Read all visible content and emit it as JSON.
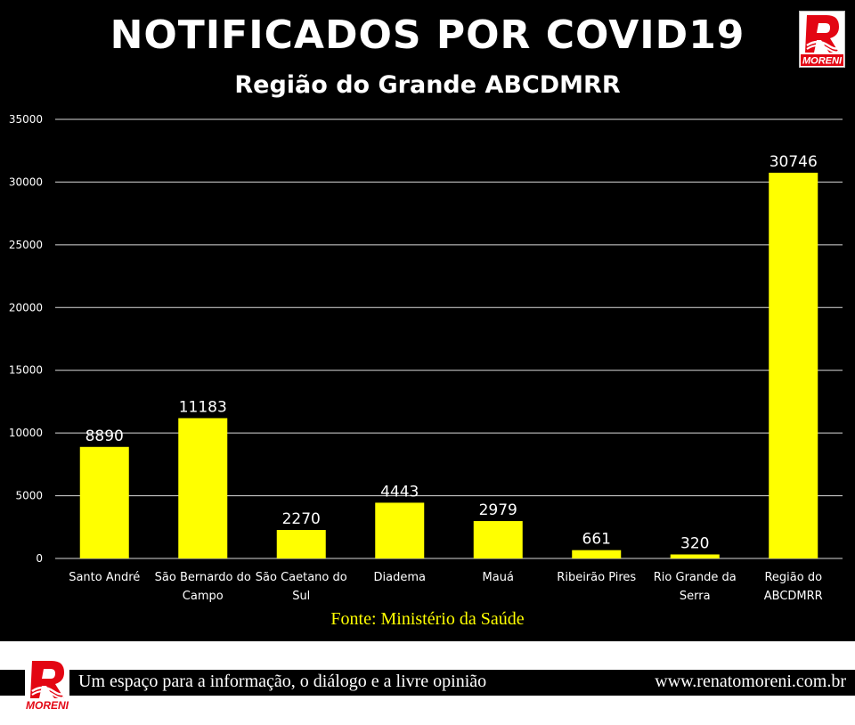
{
  "header": {
    "title": "NOTIFICADOS POR COVID19",
    "subtitle": "Região do Grande ABCDMRR",
    "logo_text": "MORENI"
  },
  "colors": {
    "background": "#000000",
    "bar": "#ffff00",
    "text": "#ffffff",
    "source": "#ffff00",
    "logo_red": "#e30613"
  },
  "chart_data": {
    "type": "bar",
    "title": "NOTIFICADOS POR COVID19",
    "subtitle": "Região do Grande ABCDMRR",
    "categories": [
      "Santo André",
      "São Bernardo do Campo",
      "São Caetano do Sul",
      "Diadema",
      "Mauá",
      "Ribeirão Pires",
      "Rio Grande da Serra",
      "Região do ABCDMRR"
    ],
    "category_lines": [
      [
        "Santo André"
      ],
      [
        "São Bernardo do",
        "Campo"
      ],
      [
        "São Caetano do",
        "Sul"
      ],
      [
        "Diadema"
      ],
      [
        "Mauá"
      ],
      [
        "Ribeirão Pires"
      ],
      [
        "Rio Grande da",
        "Serra"
      ],
      [
        "Região do",
        "ABCDMRR"
      ]
    ],
    "values": [
      8890,
      11183,
      2270,
      4443,
      2979,
      661,
      320,
      30746
    ],
    "data_labels": [
      "8890",
      "11183",
      "2270",
      "4443",
      "2979",
      "661",
      "320",
      "30746"
    ],
    "ylim": [
      0,
      35000
    ],
    "yticks": [
      0,
      5000,
      10000,
      15000,
      20000,
      25000,
      30000,
      35000
    ],
    "grid": true,
    "legend": "none",
    "xlabel": "",
    "ylabel": ""
  },
  "source": "Fonte: Ministério da Saúde",
  "footer": {
    "tagline": "Um espaço para a informação, o diálogo e a livre opinião",
    "url": "www.renatomoreni.com.br"
  }
}
